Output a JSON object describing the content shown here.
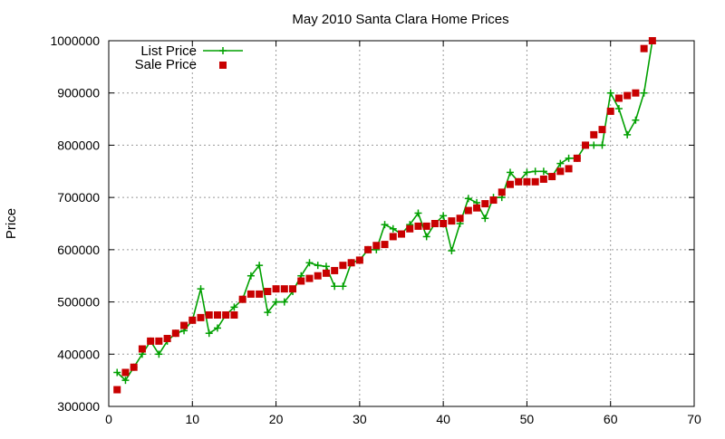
{
  "chart_data": {
    "type": "line",
    "title": "May 2010 Santa Clara Home Prices",
    "xlabel": "",
    "ylabel": "Price",
    "xlim": [
      0,
      70
    ],
    "ylim": [
      300000,
      1000000
    ],
    "x_ticks": [
      0,
      10,
      20,
      30,
      40,
      50,
      60,
      70
    ],
    "y_ticks": [
      300000,
      400000,
      500000,
      600000,
      700000,
      800000,
      900000,
      1000000
    ],
    "grid": true,
    "legend_position": "top-left",
    "series": [
      {
        "name": "List Price",
        "style": "line+cross",
        "color": "#00a000",
        "x": [
          1,
          2,
          3,
          4,
          5,
          6,
          7,
          8,
          9,
          10,
          11,
          12,
          13,
          14,
          15,
          16,
          17,
          18,
          19,
          20,
          21,
          22,
          23,
          24,
          25,
          26,
          27,
          28,
          29,
          30,
          31,
          32,
          33,
          34,
          35,
          36,
          37,
          38,
          39,
          40,
          41,
          42,
          43,
          44,
          45,
          46,
          47,
          48,
          49,
          50,
          51,
          52,
          53,
          54,
          55,
          56,
          57,
          58,
          59,
          60,
          61,
          62,
          63,
          64,
          65
        ],
        "y": [
          365000,
          350000,
          375000,
          400000,
          425000,
          400000,
          425000,
          440000,
          445000,
          465000,
          525000,
          440000,
          450000,
          475000,
          490000,
          505000,
          550000,
          570000,
          480000,
          500000,
          500000,
          520000,
          550000,
          575000,
          570000,
          568000,
          530000,
          530000,
          575000,
          580000,
          600000,
          600000,
          648000,
          640000,
          630000,
          648000,
          670000,
          625000,
          650000,
          665000,
          598000,
          650000,
          698000,
          690000,
          660000,
          700000,
          700000,
          748000,
          730000,
          748000,
          750000,
          750000,
          740000,
          765000,
          775000,
          775000,
          800000,
          800000,
          800000,
          900000,
          870000,
          820000,
          848000,
          900000,
          1000000
        ]
      },
      {
        "name": "Sale Price",
        "style": "square",
        "color": "#c80000",
        "x": [
          1,
          2,
          3,
          4,
          5,
          6,
          7,
          8,
          9,
          10,
          11,
          12,
          13,
          14,
          15,
          16,
          17,
          18,
          19,
          20,
          21,
          22,
          23,
          24,
          25,
          26,
          27,
          28,
          29,
          30,
          31,
          32,
          33,
          34,
          35,
          36,
          37,
          38,
          39,
          40,
          41,
          42,
          43,
          44,
          45,
          46,
          47,
          48,
          49,
          50,
          51,
          52,
          53,
          54,
          55,
          56,
          57,
          58,
          59,
          60,
          61,
          62,
          63,
          64,
          65
        ],
        "y": [
          332000,
          365000,
          375000,
          410000,
          425000,
          425000,
          430000,
          440000,
          455000,
          465000,
          470000,
          475000,
          475000,
          475000,
          475000,
          505000,
          515000,
          515000,
          520000,
          525000,
          525000,
          525000,
          540000,
          545000,
          550000,
          555000,
          560000,
          570000,
          575000,
          580000,
          600000,
          608000,
          610000,
          625000,
          630000,
          640000,
          645000,
          645000,
          650000,
          650000,
          655000,
          660000,
          675000,
          680000,
          688000,
          695000,
          710000,
          725000,
          730000,
          730000,
          730000,
          735000,
          740000,
          750000,
          755000,
          775000,
          800000,
          820000,
          830000,
          865000,
          890000,
          895000,
          900000,
          985000,
          1000000
        ]
      }
    ]
  }
}
